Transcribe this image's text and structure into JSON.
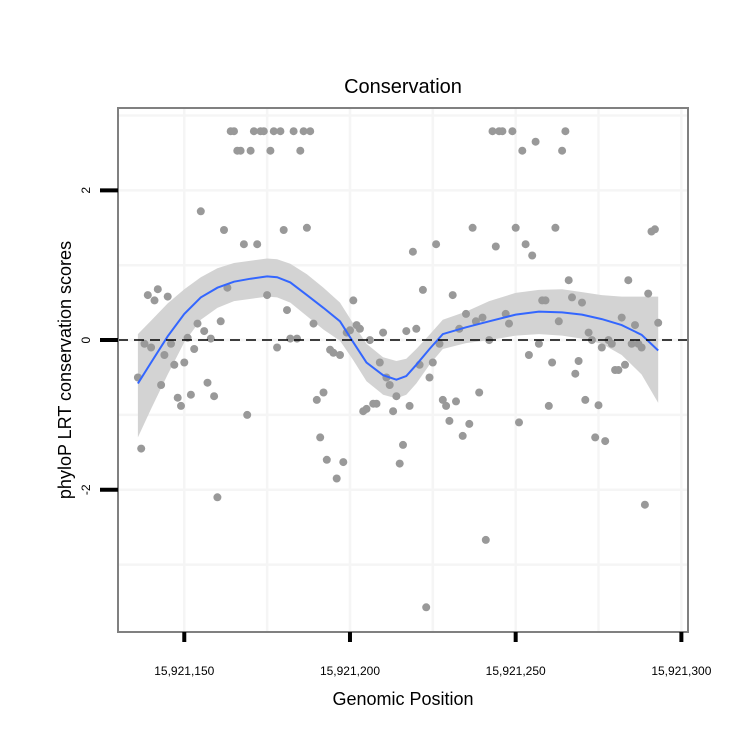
{
  "chart_data": {
    "type": "scatter",
    "title": "Conservation",
    "xlabel": "Genomic Position",
    "ylabel": "phyloP LRT conservation scores",
    "xlim": [
      15921130,
      15921302
    ],
    "ylim": [
      -3.9,
      3.1
    ],
    "x_ticks": [
      15921150,
      15921200,
      15921250,
      15921300
    ],
    "x_tick_labels": [
      "15,921,150",
      "15,921,200",
      "15,921,250",
      "15,921,300"
    ],
    "y_ticks": [
      -2,
      0,
      2
    ],
    "y_tick_labels": [
      "-2",
      "0",
      "2"
    ],
    "grid": true,
    "legend": "none",
    "reference_line": {
      "y": 0,
      "style": "dashed"
    },
    "colors": {
      "points": "#999999",
      "smooth_line": "#3366ff",
      "confidence_band": "#d3d3d3",
      "panel_border": "#808080",
      "grid": "#f5f5f5"
    },
    "points": [
      {
        "x": 15921136,
        "y": -0.5
      },
      {
        "x": 15921137,
        "y": -1.45
      },
      {
        "x": 15921138,
        "y": -0.05
      },
      {
        "x": 15921139,
        "y": 0.6
      },
      {
        "x": 15921140,
        "y": -0.1
      },
      {
        "x": 15921141,
        "y": 0.53
      },
      {
        "x": 15921142,
        "y": 0.68
      },
      {
        "x": 15921143,
        "y": -0.6
      },
      {
        "x": 15921144,
        "y": -0.2
      },
      {
        "x": 15921145,
        "y": 0.58
      },
      {
        "x": 15921146,
        "y": -0.05
      },
      {
        "x": 15921147,
        "y": -0.33
      },
      {
        "x": 15921148,
        "y": -0.77
      },
      {
        "x": 15921149,
        "y": -0.88
      },
      {
        "x": 15921150,
        "y": -0.3
      },
      {
        "x": 15921151,
        "y": 0.03
      },
      {
        "x": 15921152,
        "y": -0.73
      },
      {
        "x": 15921153,
        "y": -0.12
      },
      {
        "x": 15921154,
        "y": 0.22
      },
      {
        "x": 15921155,
        "y": 1.72
      },
      {
        "x": 15921156,
        "y": 0.12
      },
      {
        "x": 15921157,
        "y": -0.57
      },
      {
        "x": 15921158,
        "y": 0.02
      },
      {
        "x": 15921159,
        "y": -0.75
      },
      {
        "x": 15921160,
        "y": -2.1
      },
      {
        "x": 15921161,
        "y": 0.25
      },
      {
        "x": 15921162,
        "y": 1.47
      },
      {
        "x": 15921163,
        "y": 0.7
      },
      {
        "x": 15921164,
        "y": 2.79
      },
      {
        "x": 15921165,
        "y": 2.79
      },
      {
        "x": 15921166,
        "y": 2.53
      },
      {
        "x": 15921167,
        "y": 2.53
      },
      {
        "x": 15921168,
        "y": 1.28
      },
      {
        "x": 15921169,
        "y": -1.0
      },
      {
        "x": 15921170,
        "y": 2.53
      },
      {
        "x": 15921171,
        "y": 2.79
      },
      {
        "x": 15921172,
        "y": 1.28
      },
      {
        "x": 15921173,
        "y": 2.79
      },
      {
        "x": 15921174,
        "y": 2.79
      },
      {
        "x": 15921175,
        "y": 0.6
      },
      {
        "x": 15921176,
        "y": 2.53
      },
      {
        "x": 15921177,
        "y": 2.79
      },
      {
        "x": 15921178,
        "y": -0.1
      },
      {
        "x": 15921179,
        "y": 2.79
      },
      {
        "x": 15921180,
        "y": 1.47
      },
      {
        "x": 15921181,
        "y": 0.4
      },
      {
        "x": 15921182,
        "y": 0.02
      },
      {
        "x": 15921183,
        "y": 2.79
      },
      {
        "x": 15921184,
        "y": 0.02
      },
      {
        "x": 15921185,
        "y": 2.53
      },
      {
        "x": 15921186,
        "y": 2.79
      },
      {
        "x": 15921187,
        "y": 1.5
      },
      {
        "x": 15921188,
        "y": 2.79
      },
      {
        "x": 15921189,
        "y": 0.22
      },
      {
        "x": 15921190,
        "y": -0.8
      },
      {
        "x": 15921191,
        "y": -1.3
      },
      {
        "x": 15921192,
        "y": -0.7
      },
      {
        "x": 15921193,
        "y": -1.6
      },
      {
        "x": 15921194,
        "y": -0.13
      },
      {
        "x": 15921195,
        "y": -0.17
      },
      {
        "x": 15921196,
        "y": -1.85
      },
      {
        "x": 15921197,
        "y": -0.2
      },
      {
        "x": 15921198,
        "y": -1.63
      },
      {
        "x": 15921199,
        "y": 0.1
      },
      {
        "x": 15921200,
        "y": 0.13
      },
      {
        "x": 15921201,
        "y": 0.53
      },
      {
        "x": 15921202,
        "y": 0.2
      },
      {
        "x": 15921203,
        "y": 0.15
      },
      {
        "x": 15921204,
        "y": -0.95
      },
      {
        "x": 15921205,
        "y": -0.92
      },
      {
        "x": 15921206,
        "y": 0.0
      },
      {
        "x": 15921207,
        "y": -0.85
      },
      {
        "x": 15921208,
        "y": -0.85
      },
      {
        "x": 15921209,
        "y": -0.3
      },
      {
        "x": 15921210,
        "y": 0.1
      },
      {
        "x": 15921211,
        "y": -0.5
      },
      {
        "x": 15921212,
        "y": -0.6
      },
      {
        "x": 15921213,
        "y": -0.95
      },
      {
        "x": 15921214,
        "y": -0.75
      },
      {
        "x": 15921215,
        "y": -1.65
      },
      {
        "x": 15921216,
        "y": -1.4
      },
      {
        "x": 15921217,
        "y": 0.12
      },
      {
        "x": 15921218,
        "y": -0.88
      },
      {
        "x": 15921219,
        "y": 1.18
      },
      {
        "x": 15921220,
        "y": 0.15
      },
      {
        "x": 15921221,
        "y": -0.33
      },
      {
        "x": 15921222,
        "y": 0.67
      },
      {
        "x": 15921223,
        "y": -3.57
      },
      {
        "x": 15921224,
        "y": -0.5
      },
      {
        "x": 15921225,
        "y": -0.3
      },
      {
        "x": 15921226,
        "y": 1.28
      },
      {
        "x": 15921227,
        "y": -0.05
      },
      {
        "x": 15921228,
        "y": -0.8
      },
      {
        "x": 15921229,
        "y": -0.88
      },
      {
        "x": 15921230,
        "y": -1.08
      },
      {
        "x": 15921231,
        "y": 0.6
      },
      {
        "x": 15921232,
        "y": -0.82
      },
      {
        "x": 15921233,
        "y": 0.15
      },
      {
        "x": 15921234,
        "y": -1.28
      },
      {
        "x": 15921235,
        "y": 0.35
      },
      {
        "x": 15921236,
        "y": -1.12
      },
      {
        "x": 15921237,
        "y": 1.5
      },
      {
        "x": 15921238,
        "y": 0.25
      },
      {
        "x": 15921239,
        "y": -0.7
      },
      {
        "x": 15921240,
        "y": 0.3
      },
      {
        "x": 15921241,
        "y": -2.67
      },
      {
        "x": 15921242,
        "y": 0.0
      },
      {
        "x": 15921243,
        "y": 2.79
      },
      {
        "x": 15921244,
        "y": 1.25
      },
      {
        "x": 15921245,
        "y": 2.79
      },
      {
        "x": 15921246,
        "y": 2.79
      },
      {
        "x": 15921247,
        "y": 0.35
      },
      {
        "x": 15921248,
        "y": 0.22
      },
      {
        "x": 15921249,
        "y": 2.79
      },
      {
        "x": 15921250,
        "y": 1.5
      },
      {
        "x": 15921251,
        "y": -1.1
      },
      {
        "x": 15921252,
        "y": 2.53
      },
      {
        "x": 15921253,
        "y": 1.28
      },
      {
        "x": 15921254,
        "y": -0.2
      },
      {
        "x": 15921255,
        "y": 1.13
      },
      {
        "x": 15921256,
        "y": 2.65
      },
      {
        "x": 15921257,
        "y": -0.05
      },
      {
        "x": 15921258,
        "y": 0.53
      },
      {
        "x": 15921259,
        "y": 0.53
      },
      {
        "x": 15921260,
        "y": -0.88
      },
      {
        "x": 15921261,
        "y": -0.3
      },
      {
        "x": 15921262,
        "y": 1.5
      },
      {
        "x": 15921263,
        "y": 0.25
      },
      {
        "x": 15921264,
        "y": 2.53
      },
      {
        "x": 15921265,
        "y": 2.79
      },
      {
        "x": 15921266,
        "y": 0.8
      },
      {
        "x": 15921267,
        "y": 0.57
      },
      {
        "x": 15921268,
        "y": -0.45
      },
      {
        "x": 15921269,
        "y": -0.28
      },
      {
        "x": 15921270,
        "y": 0.5
      },
      {
        "x": 15921271,
        "y": -0.8
      },
      {
        "x": 15921272,
        "y": 0.1
      },
      {
        "x": 15921273,
        "y": 0.0
      },
      {
        "x": 15921274,
        "y": -1.3
      },
      {
        "x": 15921275,
        "y": -0.87
      },
      {
        "x": 15921276,
        "y": -0.1
      },
      {
        "x": 15921277,
        "y": -1.35
      },
      {
        "x": 15921278,
        "y": 0.0
      },
      {
        "x": 15921279,
        "y": -0.05
      },
      {
        "x": 15921280,
        "y": -0.4
      },
      {
        "x": 15921281,
        "y": -0.4
      },
      {
        "x": 15921282,
        "y": 0.3
      },
      {
        "x": 15921283,
        "y": -0.33
      },
      {
        "x": 15921284,
        "y": 0.8
      },
      {
        "x": 15921285,
        "y": -0.05
      },
      {
        "x": 15921286,
        "y": 0.2
      },
      {
        "x": 15921287,
        "y": -0.05
      },
      {
        "x": 15921288,
        "y": -0.1
      },
      {
        "x": 15921289,
        "y": -2.2
      },
      {
        "x": 15921290,
        "y": 0.62
      },
      {
        "x": 15921291,
        "y": 1.45
      },
      {
        "x": 15921292,
        "y": 1.48
      },
      {
        "x": 15921293,
        "y": 0.23
      }
    ],
    "smooth": {
      "x": [
        15921136,
        15921140,
        15921145,
        15921150,
        15921155,
        15921160,
        15921165,
        15921170,
        15921175,
        15921178,
        15921182,
        15921187,
        15921192,
        15921197,
        15921201,
        15921205,
        15921210,
        15921214,
        15921217,
        15921220,
        15921224,
        15921228,
        15921235,
        15921242,
        15921250,
        15921257,
        15921264,
        15921270,
        15921276,
        15921282,
        15921288,
        15921293
      ],
      "y": [
        -0.58,
        -0.3,
        0.05,
        0.35,
        0.57,
        0.7,
        0.78,
        0.82,
        0.85,
        0.84,
        0.77,
        0.6,
        0.43,
        0.25,
        -0.03,
        -0.3,
        -0.47,
        -0.53,
        -0.48,
        -0.33,
        -0.12,
        0.08,
        0.17,
        0.25,
        0.34,
        0.38,
        0.37,
        0.34,
        0.28,
        0.2,
        0.07,
        -0.14
      ],
      "upper": [
        0.08,
        0.26,
        0.49,
        0.68,
        0.84,
        0.96,
        1.03,
        1.06,
        1.09,
        1.08,
        1.02,
        0.88,
        0.7,
        0.5,
        0.22,
        -0.05,
        -0.23,
        -0.28,
        -0.25,
        -0.12,
        0.07,
        0.27,
        0.38,
        0.52,
        0.63,
        0.67,
        0.68,
        0.64,
        0.6,
        0.58,
        0.58,
        0.58
      ],
      "lower": [
        -1.3,
        -0.92,
        -0.46,
        -0.03,
        0.27,
        0.43,
        0.52,
        0.55,
        0.58,
        0.57,
        0.5,
        0.32,
        0.14,
        -0.01,
        -0.27,
        -0.55,
        -0.73,
        -0.78,
        -0.73,
        -0.58,
        -0.33,
        -0.12,
        -0.04,
        0.0,
        0.06,
        0.08,
        0.06,
        0.02,
        -0.05,
        -0.2,
        -0.46,
        -0.84
      ]
    }
  }
}
